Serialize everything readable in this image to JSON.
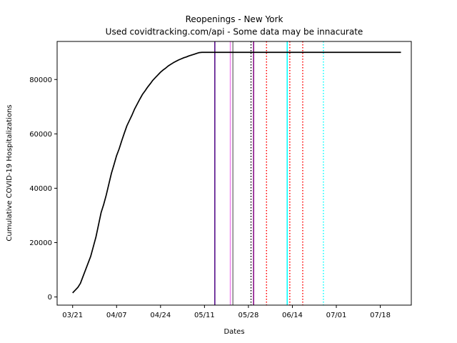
{
  "chart_data": {
    "type": "line",
    "title": "Reopenings - New York",
    "subtitle": "Used covidtracking.com/api - Some data may be innacurate",
    "xlabel": "Dates",
    "ylabel": "Cumulative COVID-19 Hospitalizations",
    "x_tick_labels": [
      "03/21",
      "04/07",
      "04/24",
      "05/11",
      "05/28",
      "06/14",
      "07/01",
      "07/18"
    ],
    "y_ticks": [
      0,
      20000,
      40000,
      60000,
      80000
    ],
    "xlim": [
      "2020-03-15",
      "2020-07-30"
    ],
    "ylim": [
      -3000,
      94000
    ],
    "grid": false,
    "series": [
      {
        "color": "#000000",
        "points": [
          [
            "2020-03-21",
            1500
          ],
          [
            "2020-03-22",
            2500
          ],
          [
            "2020-03-23",
            3500
          ],
          [
            "2020-03-24",
            5000
          ],
          [
            "2020-03-25",
            7500
          ],
          [
            "2020-03-26",
            10000
          ],
          [
            "2020-03-27",
            12500
          ],
          [
            "2020-03-28",
            15000
          ],
          [
            "2020-03-29",
            18500
          ],
          [
            "2020-03-30",
            22000
          ],
          [
            "2020-03-31",
            26500
          ],
          [
            "2020-04-01",
            31000
          ],
          [
            "2020-04-02",
            34000
          ],
          [
            "2020-04-03",
            37500
          ],
          [
            "2020-04-04",
            41500
          ],
          [
            "2020-04-05",
            45500
          ],
          [
            "2020-04-06",
            48700
          ],
          [
            "2020-04-07",
            52000
          ],
          [
            "2020-04-08",
            54500
          ],
          [
            "2020-04-09",
            57500
          ],
          [
            "2020-04-10",
            60300
          ],
          [
            "2020-04-11",
            63000
          ],
          [
            "2020-04-12",
            65000
          ],
          [
            "2020-04-13",
            67000
          ],
          [
            "2020-04-14",
            69200
          ],
          [
            "2020-04-15",
            71000
          ],
          [
            "2020-04-16",
            72800
          ],
          [
            "2020-04-17",
            74500
          ],
          [
            "2020-04-18",
            75800
          ],
          [
            "2020-04-19",
            77200
          ],
          [
            "2020-04-20",
            78400
          ],
          [
            "2020-04-21",
            79700
          ],
          [
            "2020-04-22",
            80700
          ],
          [
            "2020-04-23",
            81700
          ],
          [
            "2020-04-24",
            82700
          ],
          [
            "2020-04-25",
            83500
          ],
          [
            "2020-04-26",
            84200
          ],
          [
            "2020-04-27",
            85000
          ],
          [
            "2020-04-28",
            85600
          ],
          [
            "2020-04-29",
            86200
          ],
          [
            "2020-04-30",
            86700
          ],
          [
            "2020-05-01",
            87200
          ],
          [
            "2020-05-02",
            87600
          ],
          [
            "2020-05-03",
            88000
          ],
          [
            "2020-05-04",
            88300
          ],
          [
            "2020-05-05",
            88700
          ],
          [
            "2020-05-06",
            89000
          ],
          [
            "2020-05-07",
            89300
          ],
          [
            "2020-05-08",
            89600
          ],
          [
            "2020-05-09",
            89900
          ],
          [
            "2020-05-10",
            90000
          ],
          [
            "2020-05-11",
            90000
          ],
          [
            "2020-07-26",
            90000
          ]
        ]
      }
    ],
    "vertical_lines": [
      {
        "x": "2020-05-15",
        "color": "#4b0082",
        "style": "solid"
      },
      {
        "x": "2020-05-21",
        "color": "#ee82ee",
        "style": "solid"
      },
      {
        "x": "2020-05-22",
        "color": "#808080",
        "style": "solid"
      },
      {
        "x": "2020-05-29",
        "color": "#000000",
        "style": "dotted"
      },
      {
        "x": "2020-05-30",
        "color": "#800080",
        "style": "solid"
      },
      {
        "x": "2020-06-04",
        "color": "#ff0000",
        "style": "dotted"
      },
      {
        "x": "2020-06-12",
        "color": "#00ffff",
        "style": "solid"
      },
      {
        "x": "2020-06-13",
        "color": "#ff0000",
        "style": "dotted"
      },
      {
        "x": "2020-06-18",
        "color": "#ff0000",
        "style": "dotted"
      },
      {
        "x": "2020-06-26",
        "color": "#00ffff",
        "style": "dotted"
      }
    ]
  }
}
